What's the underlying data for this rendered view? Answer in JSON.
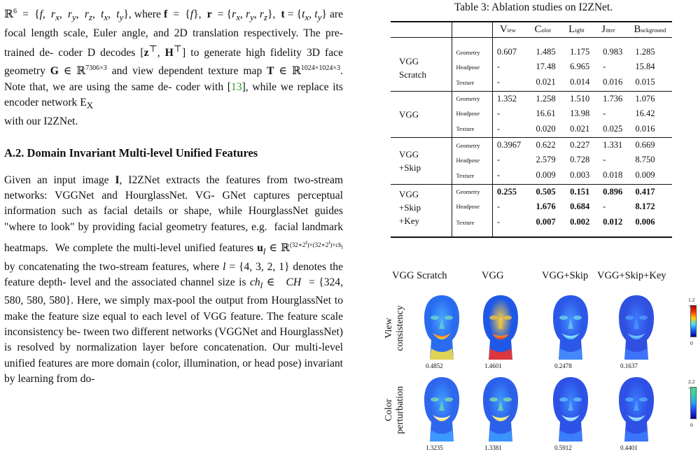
{
  "left": {
    "para1": {
      "prefix": "ℝ",
      "sup6": "6",
      "text1": " = {f, r",
      "text_full": "= {f, rx, ry, rz, tx, ty}, where f = {f}, r = {rx, ry, rz}, t = {tx, ty} are focal length scale, Euler angle, and 2D translation respectively. The pre-trained decoder D decodes [zᵀ, Hᵀ] to generate high fidelity 3D face geometry G ∈ ℝ7306×3 and view dependent texture map T ∈ ℝ1024×1024×3. Note that, we are using the same decoder with [13], while we replace its encoder network EX with our I2ZNet."
    },
    "section_title": "A.2. Domain Invariant Multi-level Unified Features",
    "para2": "Given an input image I, I2ZNet extracts the features from two-stream networks: VGGNet and HourglassNet. VGGNet captures perceptual information such as facial details or shape, while HourglassNet guides \"where to look\" by providing facial geometry features, e.g. facial landmark heatmaps. We complete the multi-level unified features"
  },
  "table": {
    "caption": "Table 3: Ablation studies on I2ZNet.",
    "columns": [
      {
        "big": "V",
        "small": "iew"
      },
      {
        "big": "C",
        "small": "olor"
      },
      {
        "big": "L",
        "small": "ight"
      },
      {
        "big": "J",
        "small": "itter"
      },
      {
        "big": "B",
        "small": "ackground"
      }
    ],
    "groups": [
      {
        "name_lines": [
          "VGG",
          "Scratch"
        ],
        "rows": [
          {
            "label": "Geometry",
            "values": [
              "0.607",
              "1.485",
              "1.175",
              "0.983",
              "1.285"
            ],
            "bold": [
              false,
              false,
              false,
              false,
              false
            ]
          },
          {
            "label": "Headpose",
            "values": [
              "-",
              "17.48",
              "6.965",
              "-",
              "15.84"
            ],
            "bold": [
              false,
              false,
              false,
              false,
              false
            ]
          },
          {
            "label": "Texture",
            "values": [
              "-",
              "0.021",
              "0.014",
              "0.016",
              "0.015"
            ],
            "bold": [
              false,
              false,
              false,
              false,
              false
            ]
          }
        ]
      },
      {
        "name_lines": [
          "VGG"
        ],
        "rows": [
          {
            "label": "Geometry",
            "values": [
              "1.352",
              "1.258",
              "1.510",
              "1.736",
              "1.076"
            ],
            "bold": [
              false,
              false,
              false,
              false,
              false
            ]
          },
          {
            "label": "Headpose",
            "values": [
              "-",
              "16.61",
              "13.98",
              "-",
              "16.42"
            ],
            "bold": [
              false,
              false,
              false,
              false,
              false
            ]
          },
          {
            "label": "Texture",
            "values": [
              "-",
              "0.020",
              "0.021",
              "0.025",
              "0.016"
            ],
            "bold": [
              false,
              false,
              false,
              false,
              false
            ]
          }
        ]
      },
      {
        "name_lines": [
          "VGG",
          "+Skip"
        ],
        "rows": [
          {
            "label": "Geometry",
            "values": [
              "0.3967",
              "0.622",
              "0.227",
              "1.331",
              "0.669"
            ],
            "bold": [
              false,
              false,
              false,
              false,
              false
            ]
          },
          {
            "label": "Headpose",
            "values": [
              "-",
              "2.579",
              "0.728",
              "-",
              "8.750"
            ],
            "bold": [
              false,
              false,
              false,
              false,
              false
            ]
          },
          {
            "label": "Texture",
            "values": [
              "-",
              "0.009",
              "0.003",
              "0.018",
              "0.009"
            ],
            "bold": [
              false,
              false,
              false,
              false,
              false
            ]
          }
        ]
      },
      {
        "name_lines": [
          "VGG",
          "+Skip",
          "+Key"
        ],
        "rows": [
          {
            "label": "Geometry",
            "values": [
              "0.255",
              "0.505",
              "0.151",
              "0.896",
              "0.417"
            ],
            "bold": [
              true,
              true,
              true,
              true,
              true
            ]
          },
          {
            "label": "Headpose",
            "values": [
              "-",
              "1.676",
              "0.684",
              "-",
              "8.172"
            ],
            "bold": [
              false,
              true,
              true,
              false,
              true
            ]
          },
          {
            "label": "Texture",
            "values": [
              "-",
              "0.007",
              "0.002",
              "0.012",
              "0.006"
            ],
            "bold": [
              false,
              true,
              true,
              true,
              true
            ]
          }
        ]
      }
    ]
  },
  "figure": {
    "col_titles": [
      "VGG Scratch",
      "VGG",
      "VGG+Skip",
      "VGG+Skip+Key"
    ],
    "rows": [
      {
        "label_lines": [
          "View",
          "consistency"
        ],
        "values": [
          "0.4852",
          "1.4601",
          "0.2478",
          "0.1637"
        ],
        "bar_max": "1.2 <",
        "bar_min": "0"
      },
      {
        "label_lines": [
          "Color",
          "perturbation"
        ],
        "values": [
          "1.3235",
          "1.3381",
          "0.5912",
          "0.4401"
        ],
        "bar_max": "2.2 <",
        "bar_min": "0"
      }
    ]
  }
}
